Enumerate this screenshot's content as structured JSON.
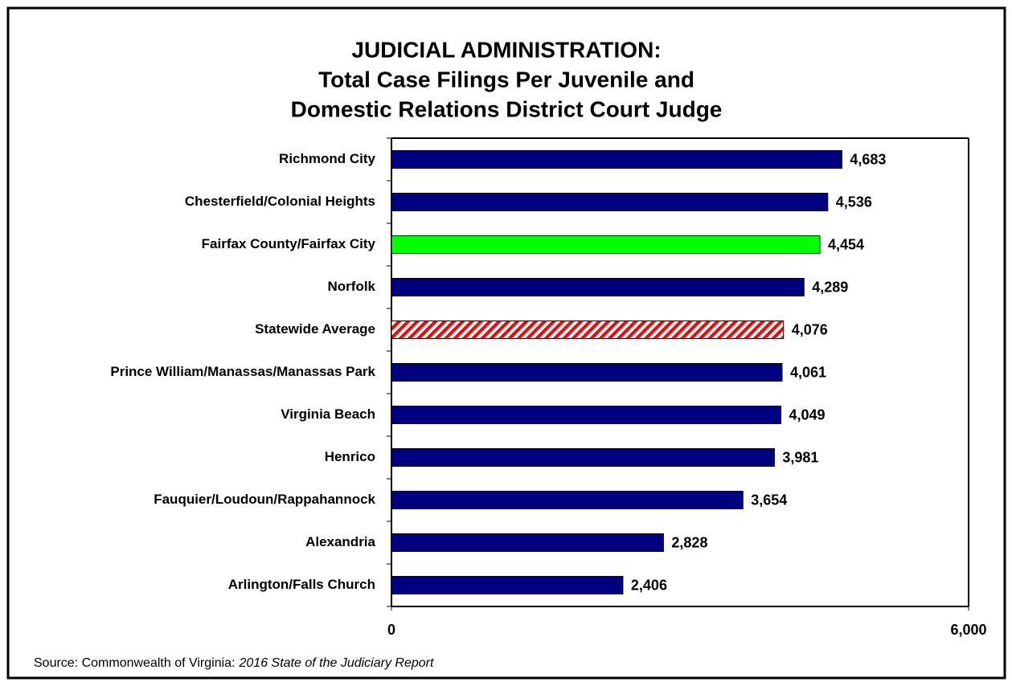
{
  "chart_data": {
    "type": "barh",
    "title": [
      "JUDICIAL ADMINISTRATION:",
      "Total Case Filings Per Juvenile and",
      "Domestic Relations District Court Judge"
    ],
    "categories": [
      "Richmond City",
      "Chesterfield/Colonial Heights",
      "Fairfax County/Fairfax City",
      "Norfolk",
      "Statewide Average",
      "Prince William/Manassas/Manassas Park",
      "Virginia Beach",
      "Henrico",
      "Fauquier/Loudoun/Rappahannock",
      "Alexandria",
      "Arlington/Falls Church"
    ],
    "values": [
      4683,
      4536,
      4454,
      4289,
      4076,
      4061,
      4049,
      3981,
      3654,
      2828,
      2406
    ],
    "value_labels": [
      "4,683",
      "4,536",
      "4,454",
      "4,289",
      "4,076",
      "4,061",
      "4,049",
      "3,981",
      "3,654",
      "2,828",
      "2,406"
    ],
    "colors": [
      "#000080",
      "#000080",
      "#00ff00",
      "#000080",
      "#ff0000",
      "#000080",
      "#000080",
      "#000080",
      "#000080",
      "#000080",
      "#000080"
    ],
    "hatched": [
      false,
      false,
      false,
      false,
      true,
      false,
      false,
      false,
      false,
      false,
      false
    ],
    "xlim": [
      0,
      6000
    ],
    "xticks": [
      0,
      {
        "value": 6000,
        "label": "6,000"
      }
    ],
    "source": [
      "Source: Commonwealth of Virginia:",
      "2016 State of the Judiciary Report"
    ]
  }
}
